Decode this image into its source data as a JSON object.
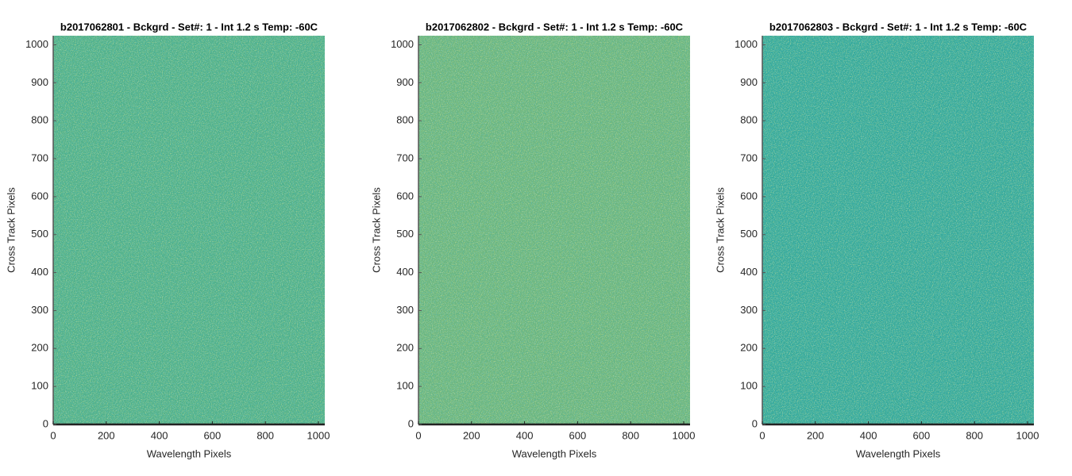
{
  "chart_data": [
    {
      "type": "image",
      "title": "b2017062801 - Bckgrd - Set#: 1 - Int 1.2 s Temp: -60C",
      "xlabel": "Wavelength Pixels",
      "ylabel": "Cross Track Pixels",
      "color": "#4fb08a",
      "xlim": [
        0,
        1024
      ],
      "ylim": [
        0,
        1024
      ],
      "xticks": [
        0,
        200,
        400,
        600,
        800,
        1000
      ],
      "yticks": [
        0,
        100,
        200,
        300,
        400,
        500,
        600,
        700,
        800,
        900,
        1000
      ]
    },
    {
      "type": "image",
      "title": "b2017062802 - Bckgrd - Set#: 1 - Int 1.2 s Temp: -60C",
      "xlabel": "Wavelength Pixels",
      "ylabel": "Cross Track Pixels",
      "color": "#6ab57e",
      "xlim": [
        0,
        1024
      ],
      "ylim": [
        0,
        1024
      ],
      "xticks": [
        0,
        200,
        400,
        600,
        800,
        1000
      ],
      "yticks": [
        0,
        100,
        200,
        300,
        400,
        500,
        600,
        700,
        800,
        900,
        1000
      ]
    },
    {
      "type": "image",
      "title": "b2017062803 - Bckgrd - Set#: 1 - Int 1.2 s Temp: -60C",
      "xlabel": "Wavelength Pixels",
      "ylabel": "Cross Track Pixels",
      "color": "#35a99a",
      "xlim": [
        0,
        1024
      ],
      "ylim": [
        0,
        1024
      ],
      "xticks": [
        0,
        200,
        400,
        600,
        800,
        1000
      ],
      "yticks": [
        0,
        100,
        200,
        300,
        400,
        500,
        600,
        700,
        800,
        900,
        1000
      ]
    }
  ]
}
